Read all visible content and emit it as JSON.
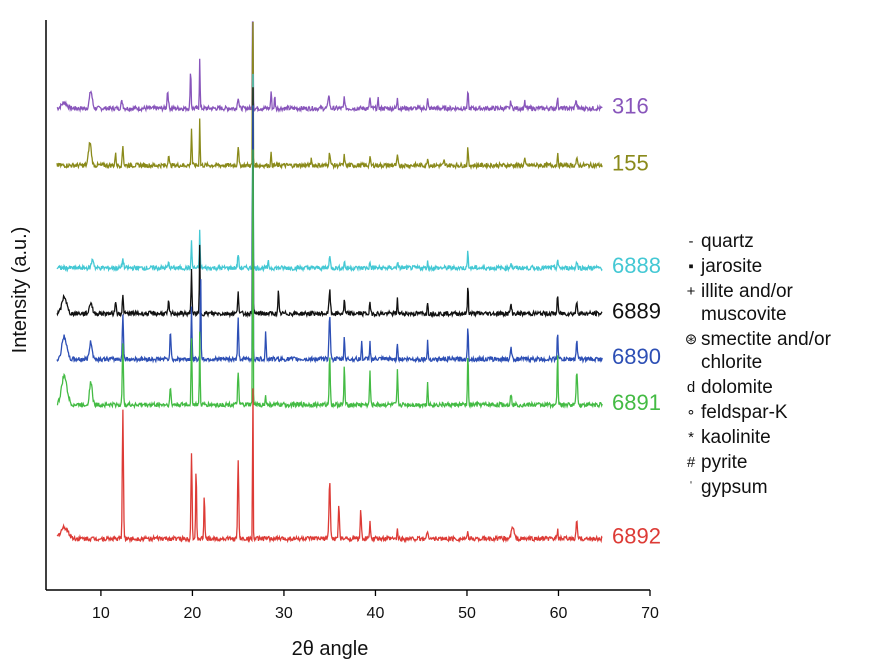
{
  "chart_data": {
    "type": "line",
    "xlabel": "2θ angle",
    "ylabel": "Intensity (a.u.)",
    "xlim": [
      4,
      70
    ],
    "xticks": [
      10,
      20,
      30,
      40,
      50,
      60,
      70
    ],
    "yaxis_ticks": false,
    "grid": false,
    "legend_position": "right",
    "series": [
      {
        "name": "316",
        "color": "#8855bb",
        "baseline": 0.845,
        "peaks": [
          [
            6.0,
            0.01,
            0.6
          ],
          [
            8.9,
            0.03,
            0.3
          ],
          [
            12.3,
            0.012,
            0.2
          ],
          [
            17.3,
            0.03,
            0.15
          ],
          [
            19.8,
            0.07,
            0.1
          ],
          [
            20.8,
            0.09,
            0.08
          ],
          [
            25.0,
            0.02,
            0.15
          ],
          [
            26.6,
            0.52,
            0.06
          ],
          [
            28.6,
            0.03,
            0.1
          ],
          [
            29.0,
            0.02,
            0.1
          ],
          [
            34.9,
            0.025,
            0.15
          ],
          [
            36.6,
            0.022,
            0.1
          ],
          [
            39.4,
            0.02,
            0.1
          ],
          [
            40.3,
            0.016,
            0.1
          ],
          [
            42.4,
            0.02,
            0.1
          ],
          [
            45.7,
            0.016,
            0.1
          ],
          [
            50.1,
            0.03,
            0.1
          ],
          [
            54.8,
            0.012,
            0.12
          ],
          [
            56.3,
            0.012,
            0.1
          ],
          [
            59.9,
            0.022,
            0.1
          ],
          [
            61.9,
            0.014,
            0.15
          ]
        ]
      },
      {
        "name": "155",
        "color": "#8a8a1a",
        "baseline": 0.745,
        "peaks": [
          [
            8.8,
            0.04,
            0.3
          ],
          [
            11.6,
            0.02,
            0.12
          ],
          [
            12.4,
            0.035,
            0.12
          ],
          [
            17.4,
            0.02,
            0.12
          ],
          [
            19.9,
            0.065,
            0.1
          ],
          [
            20.8,
            0.085,
            0.08
          ],
          [
            25.0,
            0.035,
            0.12
          ],
          [
            26.6,
            0.48,
            0.06
          ],
          [
            28.6,
            0.02,
            0.1
          ],
          [
            33.0,
            0.012,
            0.1
          ],
          [
            35.0,
            0.022,
            0.15
          ],
          [
            36.6,
            0.018,
            0.1
          ],
          [
            39.4,
            0.015,
            0.1
          ],
          [
            42.4,
            0.018,
            0.1
          ],
          [
            45.7,
            0.015,
            0.1
          ],
          [
            47.5,
            0.008,
            0.1
          ],
          [
            50.1,
            0.03,
            0.1
          ],
          [
            56.3,
            0.012,
            0.1
          ],
          [
            59.9,
            0.02,
            0.1
          ],
          [
            62.0,
            0.01,
            0.15
          ]
        ]
      },
      {
        "name": "6888",
        "color": "#44c8d4",
        "baseline": 0.565,
        "peaks": [
          [
            9.1,
            0.015,
            0.25
          ],
          [
            12.4,
            0.015,
            0.15
          ],
          [
            17.4,
            0.008,
            0.15
          ],
          [
            19.9,
            0.045,
            0.1
          ],
          [
            20.8,
            0.07,
            0.08
          ],
          [
            25.0,
            0.025,
            0.12
          ],
          [
            26.6,
            0.43,
            0.06
          ],
          [
            28.3,
            0.01,
            0.1
          ],
          [
            35.0,
            0.02,
            0.15
          ],
          [
            36.6,
            0.012,
            0.1
          ],
          [
            39.4,
            0.01,
            0.1
          ],
          [
            42.4,
            0.012,
            0.1
          ],
          [
            45.7,
            0.01,
            0.1
          ],
          [
            50.1,
            0.03,
            0.1
          ],
          [
            54.8,
            0.008,
            0.15
          ],
          [
            59.9,
            0.015,
            0.1
          ],
          [
            62.0,
            0.01,
            0.15
          ]
        ]
      },
      {
        "name": "6889",
        "color": "#111111",
        "baseline": 0.485,
        "peaks": [
          [
            6.0,
            0.03,
            0.5
          ],
          [
            8.9,
            0.02,
            0.3
          ],
          [
            11.6,
            0.025,
            0.12
          ],
          [
            12.4,
            0.03,
            0.12
          ],
          [
            17.4,
            0.02,
            0.12
          ],
          [
            19.9,
            0.075,
            0.1
          ],
          [
            20.8,
            0.12,
            0.08
          ],
          [
            25.0,
            0.04,
            0.12
          ],
          [
            26.6,
            0.5,
            0.06
          ],
          [
            29.4,
            0.04,
            0.1
          ],
          [
            35.0,
            0.04,
            0.15
          ],
          [
            36.6,
            0.025,
            0.1
          ],
          [
            39.4,
            0.02,
            0.1
          ],
          [
            42.4,
            0.025,
            0.1
          ],
          [
            45.7,
            0.02,
            0.1
          ],
          [
            50.1,
            0.05,
            0.1
          ],
          [
            54.8,
            0.015,
            0.15
          ],
          [
            59.9,
            0.035,
            0.1
          ],
          [
            62.0,
            0.02,
            0.15
          ]
        ]
      },
      {
        "name": "6890",
        "color": "#2d4fb5",
        "baseline": 0.405,
        "peaks": [
          [
            6.0,
            0.04,
            0.5
          ],
          [
            8.9,
            0.03,
            0.3
          ],
          [
            12.4,
            0.08,
            0.12
          ],
          [
            17.6,
            0.05,
            0.12
          ],
          [
            19.9,
            0.09,
            0.1
          ],
          [
            20.9,
            0.16,
            0.08
          ],
          [
            25.0,
            0.07,
            0.12
          ],
          [
            26.6,
            0.56,
            0.06
          ],
          [
            28.0,
            0.05,
            0.1
          ],
          [
            35.0,
            0.08,
            0.15
          ],
          [
            36.6,
            0.04,
            0.1
          ],
          [
            38.5,
            0.03,
            0.1
          ],
          [
            39.4,
            0.03,
            0.1
          ],
          [
            42.4,
            0.03,
            0.1
          ],
          [
            45.7,
            0.03,
            0.1
          ],
          [
            50.1,
            0.06,
            0.1
          ],
          [
            54.8,
            0.02,
            0.15
          ],
          [
            59.9,
            0.05,
            0.1
          ],
          [
            62.0,
            0.03,
            0.15
          ]
        ]
      },
      {
        "name": "6891",
        "color": "#44bb44",
        "baseline": 0.325,
        "peaks": [
          [
            6.0,
            0.05,
            0.6
          ],
          [
            8.9,
            0.04,
            0.3
          ],
          [
            12.4,
            0.11,
            0.12
          ],
          [
            17.6,
            0.03,
            0.12
          ],
          [
            19.9,
            0.12,
            0.1
          ],
          [
            20.8,
            0.13,
            0.08
          ],
          [
            25.0,
            0.06,
            0.12
          ],
          [
            26.6,
            0.56,
            0.06
          ],
          [
            28.0,
            0.015,
            0.1
          ],
          [
            35.0,
            0.09,
            0.12
          ],
          [
            36.6,
            0.07,
            0.1
          ],
          [
            39.4,
            0.06,
            0.1
          ],
          [
            42.4,
            0.06,
            0.1
          ],
          [
            45.7,
            0.04,
            0.1
          ],
          [
            50.1,
            0.09,
            0.1
          ],
          [
            54.8,
            0.02,
            0.15
          ],
          [
            59.9,
            0.09,
            0.1
          ],
          [
            62.0,
            0.06,
            0.15
          ]
        ]
      },
      {
        "name": "6892",
        "color": "#dd3b36",
        "baseline": 0.09,
        "peaks": [
          [
            6.0,
            0.02,
            0.8
          ],
          [
            12.4,
            0.23,
            0.12
          ],
          [
            19.9,
            0.15,
            0.12
          ],
          [
            20.4,
            0.12,
            0.1
          ],
          [
            21.3,
            0.08,
            0.1
          ],
          [
            25.0,
            0.14,
            0.12
          ],
          [
            26.6,
            0.33,
            0.06
          ],
          [
            35.0,
            0.1,
            0.15
          ],
          [
            36.0,
            0.06,
            0.12
          ],
          [
            38.4,
            0.05,
            0.12
          ],
          [
            39.4,
            0.03,
            0.1
          ],
          [
            42.4,
            0.015,
            0.1
          ],
          [
            45.7,
            0.015,
            0.15
          ],
          [
            50.1,
            0.01,
            0.1
          ],
          [
            55.0,
            0.02,
            0.3
          ],
          [
            59.9,
            0.015,
            0.1
          ],
          [
            62.0,
            0.03,
            0.15
          ]
        ]
      }
    ],
    "legend": [
      {
        "symbol": "-",
        "label": "quartz"
      },
      {
        "symbol": "▪",
        "label": "jarosite"
      },
      {
        "symbol": "+",
        "label": "illite and/or muscovite"
      },
      {
        "symbol": "⊛",
        "label": "smectite and/or chlorite"
      },
      {
        "symbol": "d",
        "label": "dolomite"
      },
      {
        "symbol": "∘",
        "label": "feldspar-K"
      },
      {
        "symbol": "*",
        "label": "kaolinite"
      },
      {
        "symbol": "#",
        "label": "pyrite"
      },
      {
        "symbol": "ˈ",
        "label": "gypsum"
      }
    ]
  }
}
